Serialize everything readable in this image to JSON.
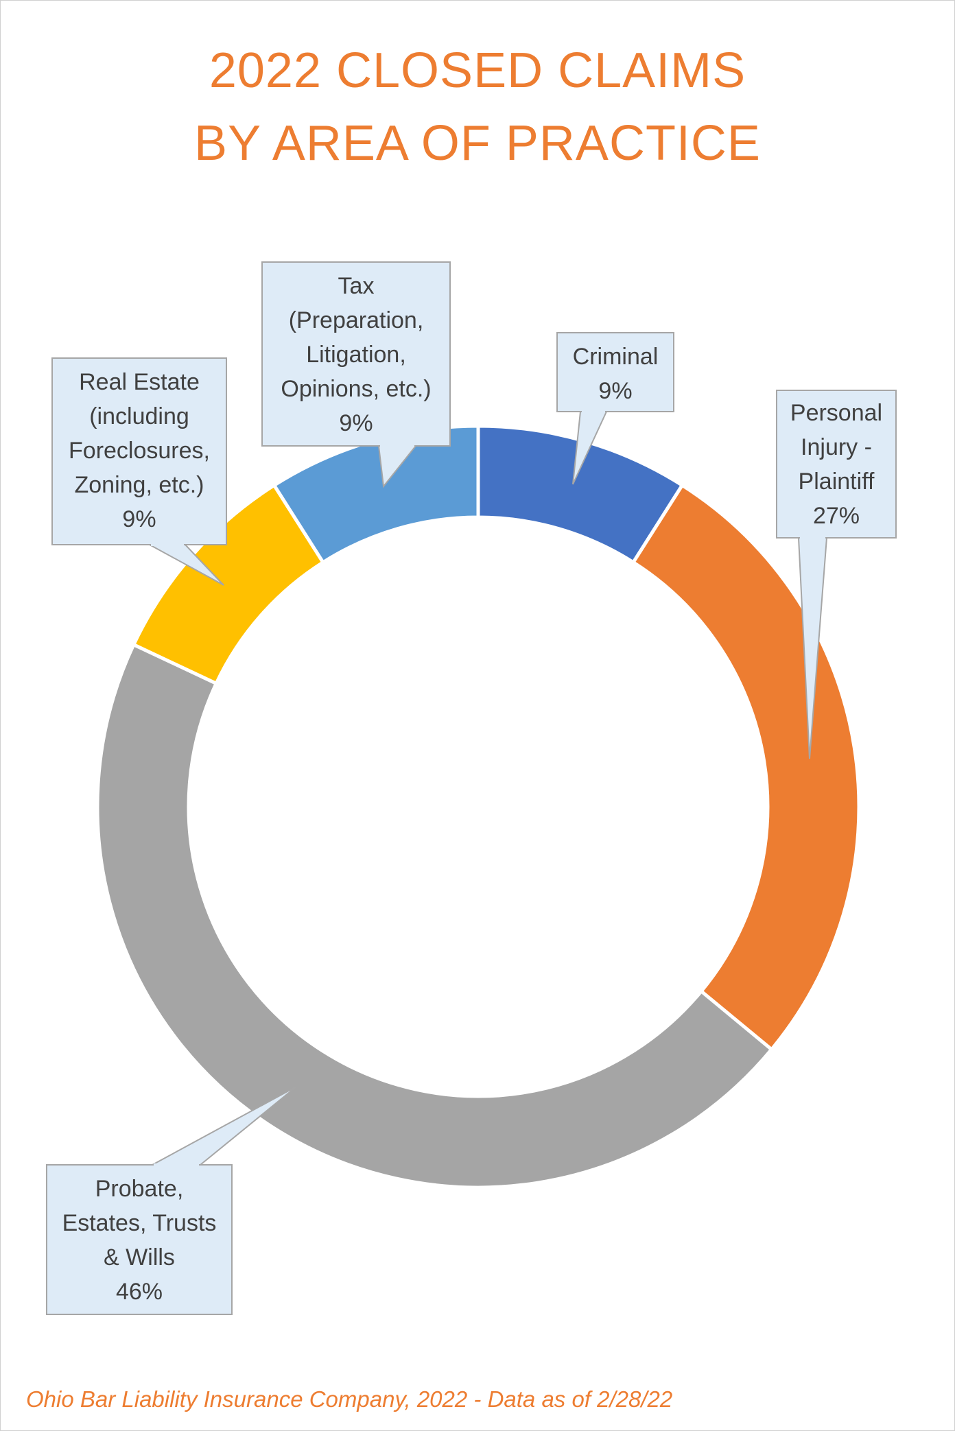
{
  "chart_data": {
    "type": "pie",
    "variant": "donut",
    "title_lines": [
      "2022 CLOSED CLAIMS",
      "BY AREA OF PRACTICE"
    ],
    "slices": [
      {
        "label_lines": [
          "Criminal"
        ],
        "value": 9,
        "value_label": "9%",
        "color": "#4472C4"
      },
      {
        "label_lines": [
          "Personal",
          "Injury -",
          "Plaintiff"
        ],
        "value": 27,
        "value_label": "27%",
        "color": "#ED7D31"
      },
      {
        "label_lines": [
          "Probate,",
          "Estates, Trusts",
          "& Wills"
        ],
        "value": 46,
        "value_label": "46%",
        "color": "#A5A5A5"
      },
      {
        "label_lines": [
          "Real Estate",
          "(including",
          "Foreclosures,",
          "Zoning, etc.)"
        ],
        "value": 9,
        "value_label": "9%",
        "color": "#FFC000"
      },
      {
        "label_lines": [
          "Tax",
          "(Preparation,",
          "Litigation,",
          "Opinions, etc.)"
        ],
        "value": 9,
        "value_label": "9%",
        "color": "#5B9BD5"
      }
    ],
    "start_angle": "12 o'clock",
    "direction": "clockwise",
    "legend": "none",
    "callout_fill": "#DEEBF7",
    "callout_border": "#A6A6A6",
    "title_color": "#ED7D31"
  },
  "source_note": "Ohio Bar Liability Insurance Company, 2022 - Data as of 2/28/22"
}
